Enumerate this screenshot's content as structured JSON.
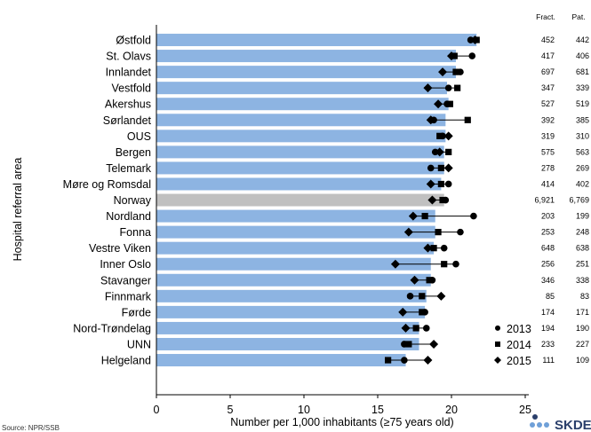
{
  "chart_data": {
    "type": "bar",
    "xlabel": "Number per 1,000 inhabitants (≥75 years old)",
    "ylabel": "Hospital referral area",
    "xlim": [
      0,
      30
    ],
    "xticks": [
      0,
      5,
      10,
      15,
      20,
      25
    ],
    "grid": false,
    "legend_position": "bottom-right",
    "categories": [
      "Østfold",
      "St. Olavs",
      "Innlandet",
      "Vestfold",
      "Akershus",
      "Sørlandet",
      "OUS",
      "Bergen",
      "Telemark",
      "Møre og Romsdal",
      "Norway",
      "Nordland",
      "Fonna",
      "Vestre Viken",
      "Inner Oslo",
      "Stavanger",
      "Finnmark",
      "Førde",
      "Nord-Trøndelag",
      "UNN",
      "Helgeland"
    ],
    "bar_values": [
      21.7,
      20.3,
      20.3,
      19.7,
      19.8,
      19.6,
      19.6,
      19.5,
      19.5,
      19.3,
      19.5,
      18.9,
      18.9,
      18.8,
      18.6,
      18.6,
      18.3,
      18.2,
      17.8,
      17.8,
      16.9
    ],
    "highlight_category": "Norway",
    "series": [
      {
        "name": "2013",
        "marker": "circle",
        "values": [
          21.3,
          21.4,
          20.6,
          19.8,
          19.7,
          18.8,
          19.4,
          18.9,
          18.6,
          19.8,
          19.6,
          21.5,
          20.6,
          19.5,
          20.3,
          18.7,
          17.2,
          18.2,
          18.3,
          16.8,
          16.8
        ]
      },
      {
        "name": "2014",
        "marker": "square",
        "values": [
          21.7,
          20.2,
          20.3,
          20.4,
          19.9,
          21.1,
          19.2,
          19.8,
          19.3,
          19.3,
          19.4,
          18.2,
          19.1,
          18.8,
          19.5,
          18.5,
          18.0,
          18.0,
          17.6,
          17.1,
          15.7
        ]
      },
      {
        "name": "2015",
        "marker": "diamond",
        "values": [
          21.6,
          20.0,
          19.4,
          18.4,
          19.1,
          18.6,
          19.8,
          19.2,
          19.8,
          18.6,
          18.7,
          17.4,
          17.1,
          18.4,
          16.2,
          17.5,
          19.3,
          16.7,
          16.9,
          18.8,
          18.4
        ]
      }
    ],
    "table": {
      "headers": [
        "Fract.",
        "Pat."
      ],
      "fract": [
        "452",
        "417",
        "697",
        "347",
        "527",
        "392",
        "319",
        "575",
        "278",
        "414",
        "6,921",
        "203",
        "253",
        "648",
        "256",
        "346",
        "85",
        "174",
        "194",
        "233",
        "111"
      ],
      "pat": [
        "442",
        "406",
        "681",
        "339",
        "519",
        "385",
        "310",
        "563",
        "269",
        "402",
        "6,769",
        "199",
        "248",
        "638",
        "251",
        "338",
        "83",
        "171",
        "190",
        "227",
        "109"
      ]
    },
    "colors": {
      "bar": "#8db4e2",
      "highlight": "#c0c0c0",
      "marker": "#000000"
    }
  },
  "footer": {
    "source": "Source: NPR/SSB",
    "logo": "SKDE"
  }
}
